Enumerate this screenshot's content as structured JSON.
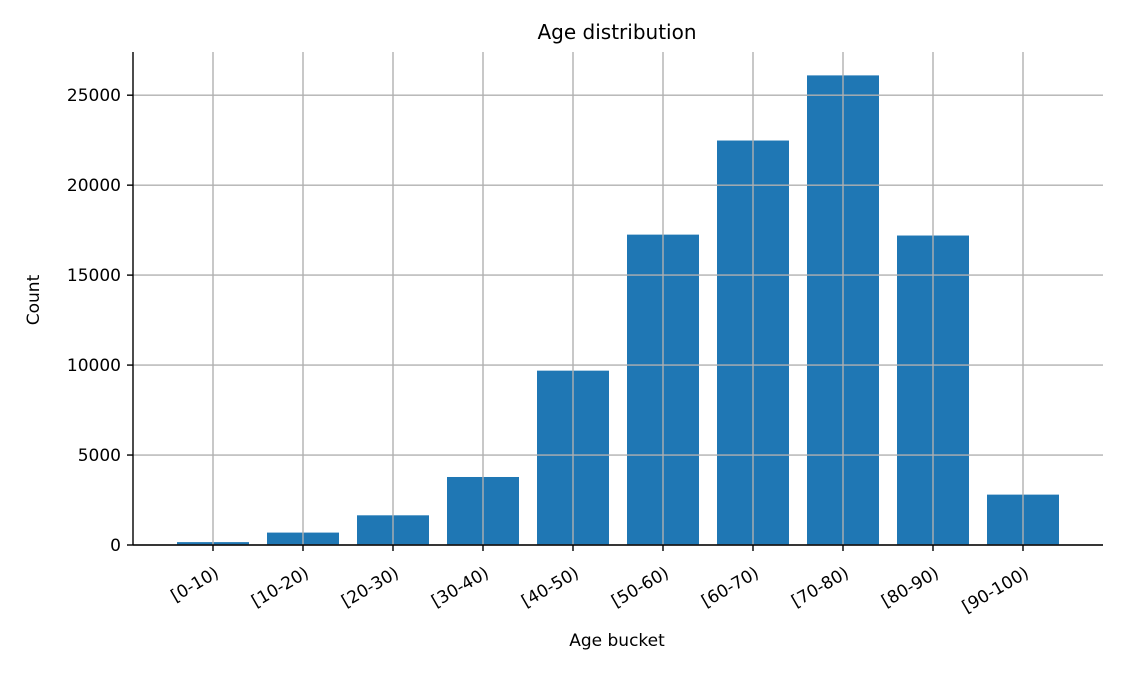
{
  "chart_data": {
    "type": "bar",
    "title": "Age distribution",
    "xlabel": "Age bucket",
    "ylabel": "Count",
    "categories": [
      "[0-10)",
      "[10-20)",
      "[20-30)",
      "[30-40)",
      "[40-50)",
      "[50-60)",
      "[60-70)",
      "[70-80)",
      "[80-90)",
      "[90-100)"
    ],
    "values": [
      160,
      690,
      1650,
      3780,
      9690,
      17250,
      22480,
      26100,
      17200,
      2800
    ],
    "ylim": [
      0,
      27400
    ],
    "yticks": [
      0,
      5000,
      10000,
      15000,
      20000,
      25000
    ],
    "ytick_labels": [
      "0",
      "5000",
      "10000",
      "15000",
      "20000",
      "25000"
    ],
    "grid": true,
    "bar_color": "#1f77b4",
    "grid_color": "#b0b0b0"
  }
}
